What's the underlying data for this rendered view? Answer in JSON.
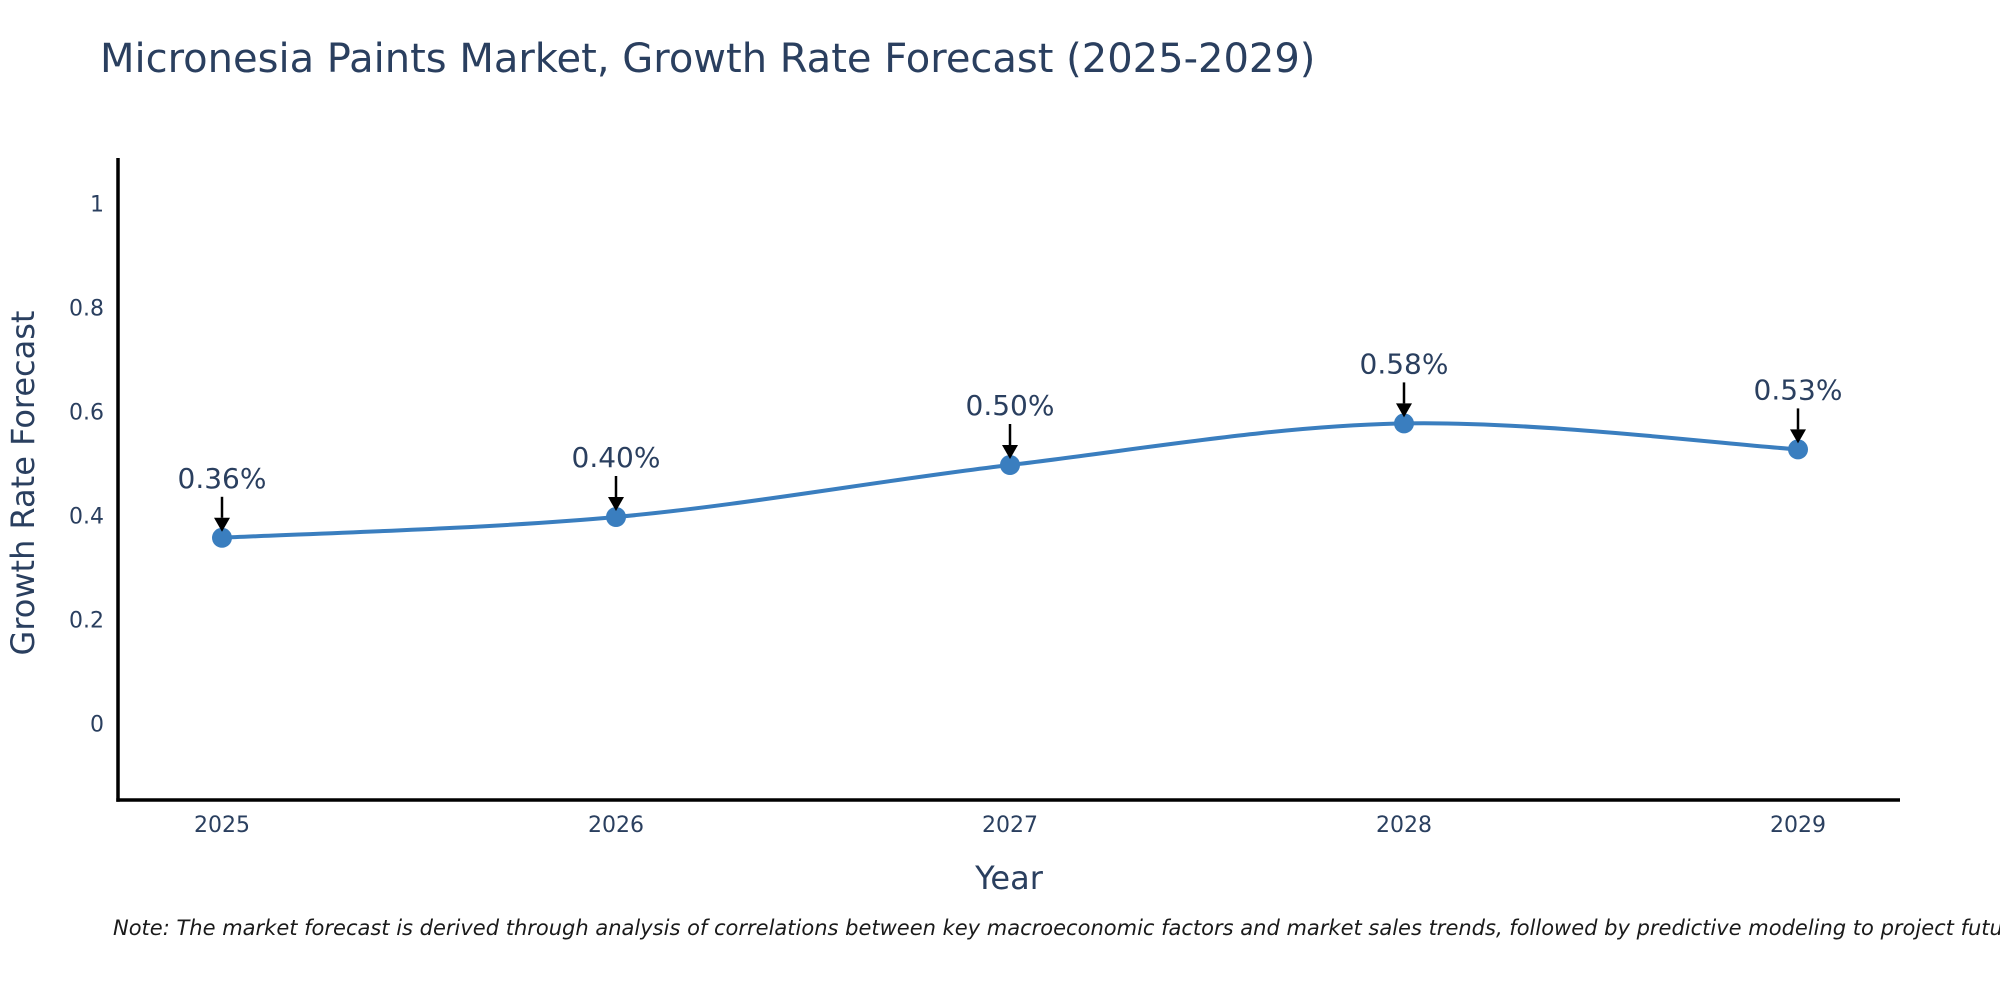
{
  "title": "Micronesia Paints Market, Growth Rate Forecast (2025-2029)",
  "note": "Note: The market forecast is derived through analysis of correlations between key macroeconomic factors and market sales trends, followed by predictive modeling to project future sales",
  "chart_data": {
    "type": "line",
    "title": "Micronesia Paints Market, Growth Rate Forecast (2025-2029)",
    "xlabel": "Year",
    "ylabel": "Growth Rate Forecast",
    "categories": [
      "2025",
      "2026",
      "2027",
      "2028",
      "2029"
    ],
    "series": [
      {
        "name": "Growth Rate Forecast",
        "values": [
          0.36,
          0.4,
          0.5,
          0.58,
          0.53
        ]
      }
    ],
    "point_labels": [
      "0.36%",
      "0.40%",
      "0.50%",
      "0.58%",
      "0.53%"
    ],
    "ytick_values": [
      1,
      0.8,
      0.6,
      0.4,
      0.2,
      0
    ],
    "ytick_labels": [
      "1",
      "0.8",
      "0.6",
      "0.4",
      "0.2",
      "0"
    ],
    "ylim": [
      -0.145,
      1.09
    ],
    "line_shape": "spline",
    "grid": false,
    "legend": false,
    "colors": {
      "line": "#3a7ebf",
      "marker": "#3a7ebf",
      "axis_line": "#000000",
      "text": "#2a3f5f",
      "annotation_arrow": "#000000",
      "background": "#ffffff"
    }
  }
}
